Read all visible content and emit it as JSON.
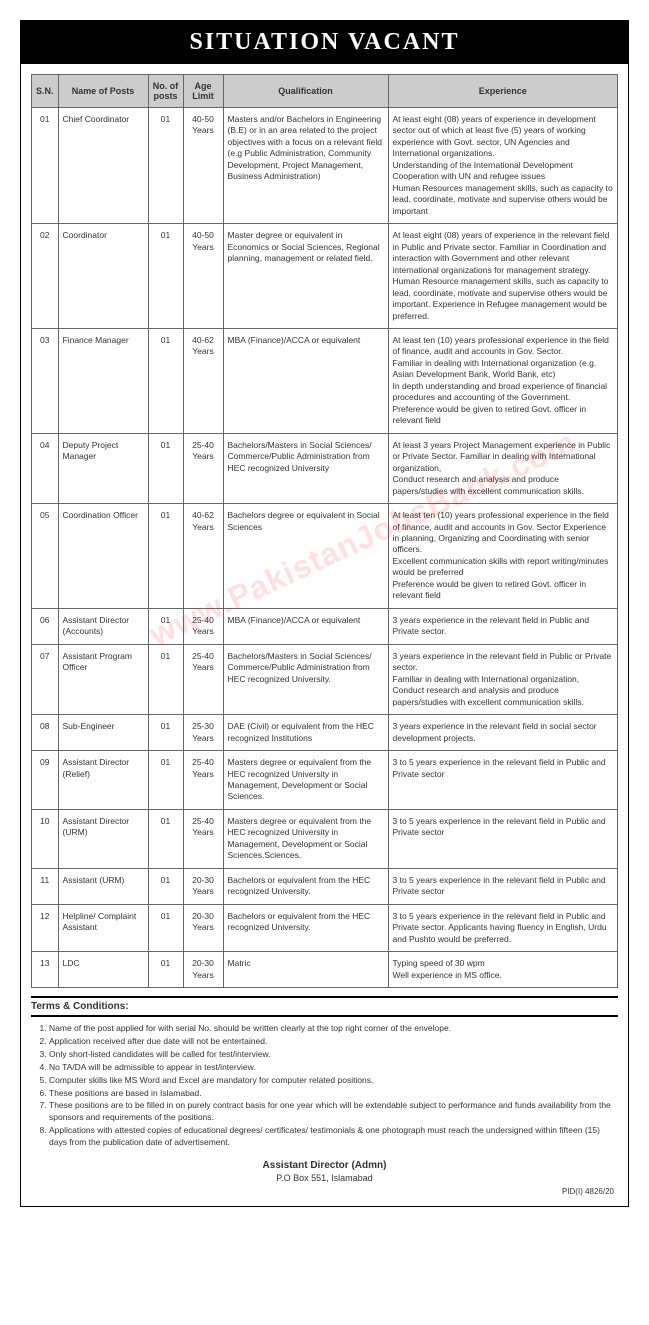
{
  "header": {
    "title": "SITUATION VACANT"
  },
  "columns": {
    "sn": "S.N.",
    "name": "Name of Posts",
    "num": "No. of posts",
    "age": "Age Limit",
    "qual": "Qualification",
    "exp": "Experience"
  },
  "rows": [
    {
      "sn": "01",
      "name": "Chief Coordinator",
      "num": "01",
      "age": "40-50 Years",
      "qual": "Masters and/or Bachelors in Engineering (B.E) or in an area related to the project objectives with a focus on a relevant field (e.g Public Administration, Community Development, Project Management, Business Administration)",
      "exp": "At least eight (08) years of experience in development sector out of which at least five (5) years of working experience with Govt. sector, UN Agencies and International organizations.\nUnderstanding of the International Development Cooperation with UN and refugee issues\nHuman Resources management skills, such as capacity to lead, coordinate, motivate and supervise others would be important"
    },
    {
      "sn": "02",
      "name": "Coordinator",
      "num": "01",
      "age": "40-50 Years",
      "qual": "Master degree or equivalent in Economics or Social Sciences, Regional planning, management or related field.",
      "exp": "At least eight (08) years of experience in the relevant field in Public and Private sector. Familiar in Coordination and interaction with Government and other relevant international organizations for management strategy. Human Resource management skills, such as capacity to lead, coordinate, motivate and supervise others would be important. Experience in Refugee management would be preferred."
    },
    {
      "sn": "03",
      "name": "Finance Manager",
      "num": "01",
      "age": "40-62 Years",
      "qual": "MBA (Finance)/ACCA or equivalent",
      "exp": "At least ten (10) years professional experience in the field of finance, audit and accounts in Gov. Sector.\nFamiliar in dealing with International organization (e.g. Asian Development Bank, World Bank, etc)\nIn depth understanding and broad experience of financial procedures and accounting of the Government.\nPreference would be given to retired Govt. officer in relevant field"
    },
    {
      "sn": "04",
      "name": "Deputy Project Manager",
      "num": "01",
      "age": "25-40 Years",
      "qual": "Bachelors/Masters in Social Sciences/ Commerce/Public Administration from HEC recognized University",
      "exp": "At least 3 years Project Management experience in Public or Private Sector. Familiar in dealing with International organization,\nConduct research and analysis and produce papers/studies with excellent communication skills."
    },
    {
      "sn": "05",
      "name": "Coordination Officer",
      "num": "01",
      "age": "40-62 Years",
      "qual": "Bachelors degree or equivalent in Social Sciences",
      "exp": "At least ten (10) years professional experience in the field of finance, audit and accounts in Gov. Sector Experience in planning, Organizing and Coordinating with senior officers.\nExcellent communication skills with report writing/minutes would be preferred\nPreference would be given to retired Govt. officer in relevant field"
    },
    {
      "sn": "06",
      "name": "Assistant Director (Accounts)",
      "num": "01",
      "age": "25-40 Years",
      "qual": "MBA (Finance)/ACCA or equivalent",
      "exp": "3 years experience in the relevant field in Public and Private sector."
    },
    {
      "sn": "07",
      "name": "Assistant Program Officer",
      "num": "01",
      "age": "25-40 Years",
      "qual": "Bachelors/Masters in Social Sciences/ Commerce/Public Administration from HEC recognized University.",
      "exp": "3 years experience in the relevant field in Public or Private sector.\nFamiliar in dealing with International organization,\nConduct research and analysis and produce papers/studies with excellent communication skills."
    },
    {
      "sn": "08",
      "name": "Sub-Engineer",
      "num": "01",
      "age": "25-30 Years",
      "qual": "DAE (Civil) or equivalent from the HEC recognized Institutions",
      "exp": "3 years experience in the relevant field in social sector development projects."
    },
    {
      "sn": "09",
      "name": "Assistant Director (Relief)",
      "num": "01",
      "age": "25-40 Years",
      "qual": "Masters degree or equivalent from the HEC recognized University in Management, Development or Social Sciences.",
      "exp": "3 to 5 years experience in the relevant field in Public and Private sector"
    },
    {
      "sn": "10",
      "name": "Assistant Director (URM)",
      "num": "01",
      "age": "25-40 Years",
      "qual": "Masters degree or equivalent from the HEC recognized University in Management, Development or Social Sciences.Sciences.",
      "exp": "3 to 5 years experience in the relevant field in Public and Private sector"
    },
    {
      "sn": "11",
      "name": "Assistant (URM)",
      "num": "01",
      "age": "20-30 Years",
      "qual": "Bachelors or equivalent from the HEC recognized University.",
      "exp": "3 to 5 years experience in the relevant field in Public and Private sector"
    },
    {
      "sn": "12",
      "name": "Helpline/ Complaint Assistant",
      "num": "01",
      "age": "20-30 Years",
      "qual": "Bachelors or equivalent from the HEC recognized University.",
      "exp": "3 to 5 years experience in the relevant field in Public and Private sector. Applicants having fluency in English, Urdu and Pushto would be preferred."
    },
    {
      "sn": "13",
      "name": "LDC",
      "num": "01",
      "age": "20-30 Years",
      "qual": "Matric",
      "exp": "Typing speed of 30 wpm\nWell experience in MS office."
    }
  ],
  "terms": {
    "header": "Terms & Conditions:",
    "items": [
      "Name of the post applied for with serial No. should be written clearly at the top right corner of the envelope.",
      "Application received after due date will not be entertained.",
      "Only short-listed candidates will be called for test/interview.",
      "No TA/DA will be admissible to appear in test/interview.",
      "Computer skills like MS Word and Excel are mandatory for computer related positions.",
      "These positions are based in Islamabad.",
      "These positions are to be filled in on purely contract basis for one year which will be extendable subject to performance and funds availability from the sponsors and requirements of the positions.",
      "Applications with attested copies of educational degrees/ certificates/ testimonials & one photograph must reach the undersigned within fifteen (15) days from the publication date of advertisement."
    ]
  },
  "footer": {
    "title": "Assistant Director (Admn)",
    "address": "P.O Box 551, Islamabad",
    "pid": "PID(I) 4826/20"
  },
  "watermark": "www.PakistanJobsBank.com"
}
